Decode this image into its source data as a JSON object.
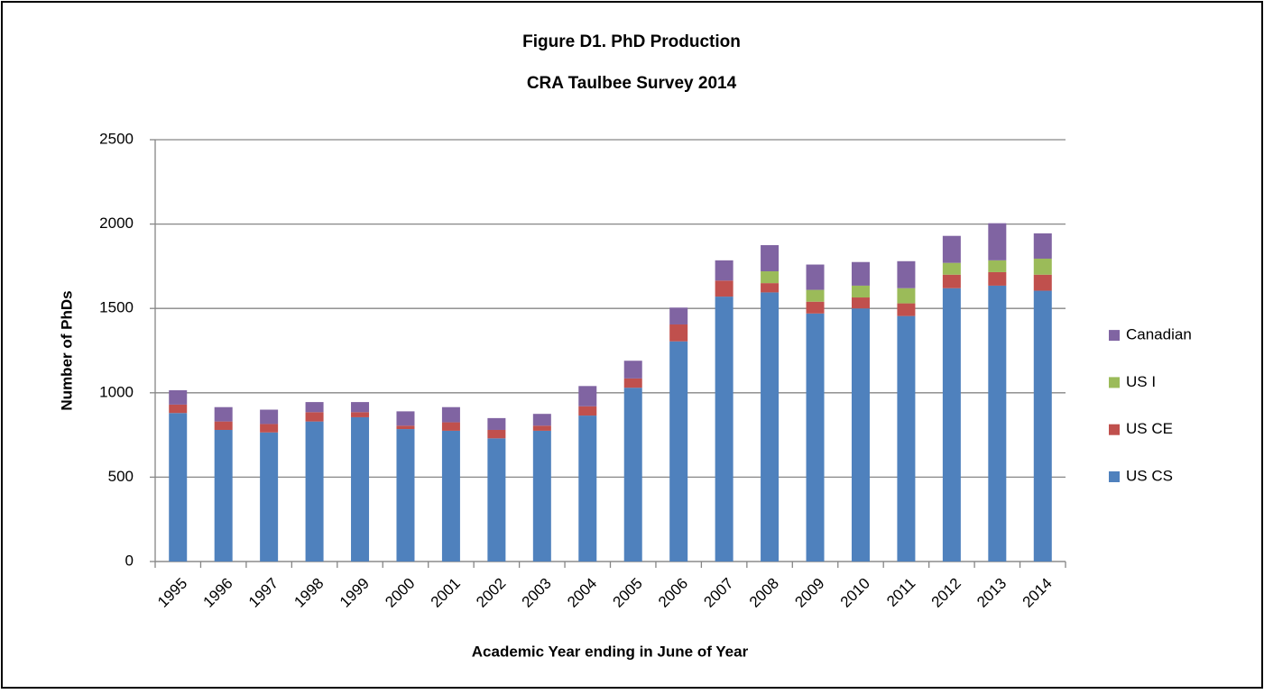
{
  "chart_data": {
    "type": "stacked_bar",
    "title": "Figure D1. PhD Production",
    "subtitle": "CRA Taulbee Survey 2014",
    "x_label": "Academic Year ending in June of Year",
    "y_label": "Number of PhDs",
    "categories": [
      "1995",
      "1996",
      "1997",
      "1998",
      "1999",
      "2000",
      "2001",
      "2002",
      "2003",
      "2004",
      "2005",
      "2006",
      "2007",
      "2008",
      "2009",
      "2010",
      "2011",
      "2012",
      "2013",
      "2014"
    ],
    "series": [
      {
        "name": "US CS",
        "color": "#4f81bd",
        "values": [
          880,
          780,
          765,
          830,
          855,
          785,
          775,
          730,
          775,
          865,
          1030,
          1305,
          1570,
          1595,
          1470,
          1500,
          1455,
          1620,
          1635,
          1605
        ]
      },
      {
        "name": "US CE",
        "color": "#c0504d",
        "values": [
          50,
          50,
          50,
          55,
          30,
          20,
          50,
          50,
          30,
          55,
          55,
          100,
          95,
          55,
          70,
          65,
          75,
          80,
          80,
          95
        ]
      },
      {
        "name": "US I",
        "color": "#9bbb59",
        "values": [
          0,
          0,
          0,
          0,
          0,
          0,
          0,
          0,
          0,
          0,
          0,
          0,
          0,
          70,
          70,
          70,
          90,
          70,
          70,
          95
        ]
      },
      {
        "name": "Canadian",
        "color": "#8064a2",
        "values": [
          85,
          85,
          85,
          60,
          60,
          85,
          90,
          70,
          70,
          120,
          105,
          100,
          120,
          155,
          150,
          140,
          160,
          160,
          220,
          150
        ]
      }
    ],
    "ylim": [
      0,
      2500
    ],
    "yticks": [
      0,
      500,
      1000,
      1500,
      2000,
      2500
    ],
    "grid": true,
    "legend": "right"
  }
}
